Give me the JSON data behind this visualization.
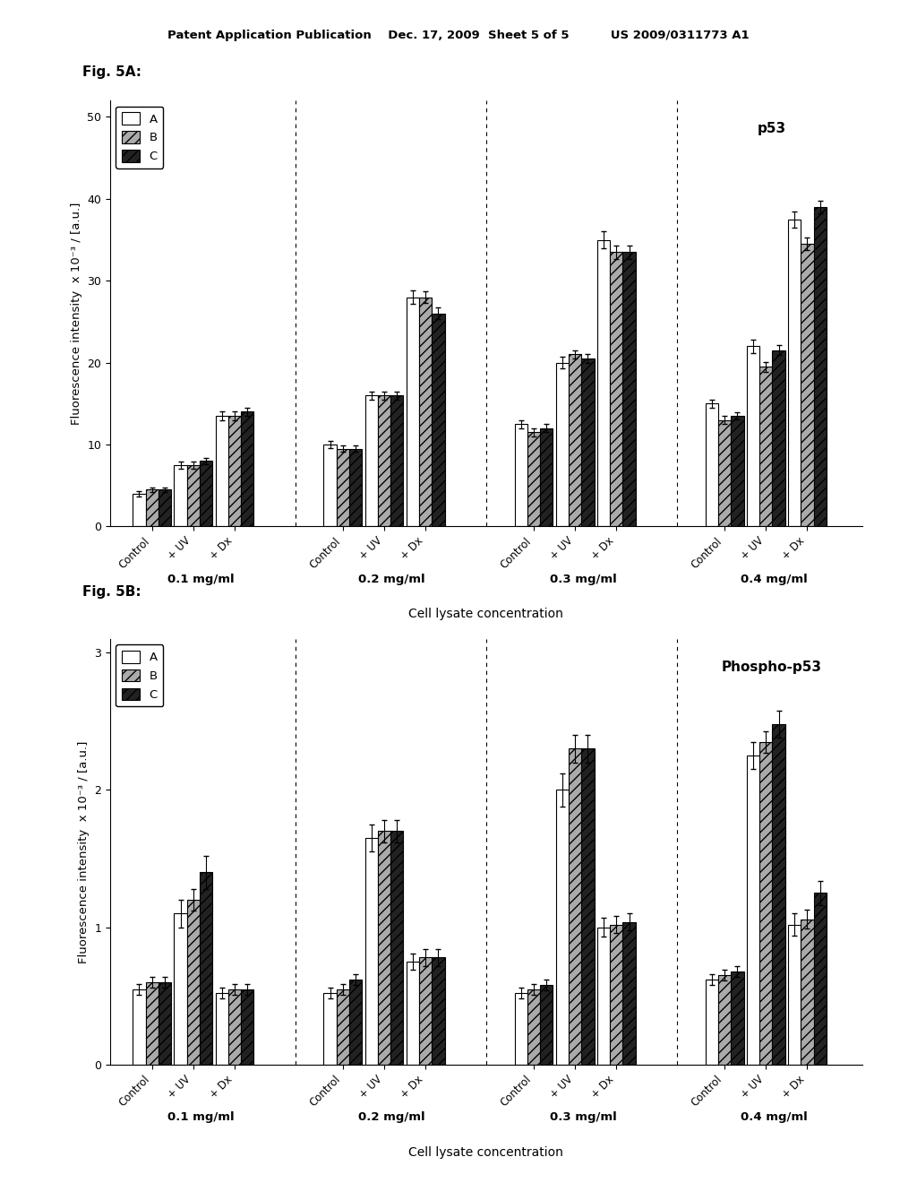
{
  "fig5A": {
    "title": "p53",
    "ylabel": "Fluorescence intensity  x 10⁻³ / [a.u.]",
    "xlabel": "Cell lysate concentration",
    "ylim": [
      0,
      52
    ],
    "yticks": [
      0,
      10,
      20,
      30,
      40,
      50
    ],
    "groups": [
      "0.1 mg/ml",
      "0.2 mg/ml",
      "0.3 mg/ml",
      "0.4 mg/ml"
    ],
    "subgroups": [
      "Control",
      "+ UV",
      "+ Dx"
    ],
    "legend_labels": [
      "A",
      "B",
      "C"
    ],
    "data_A": [
      4.0,
      7.5,
      13.5,
      10.0,
      16.0,
      28.0,
      12.5,
      20.0,
      35.0,
      15.0,
      22.0,
      37.5
    ],
    "data_B": [
      4.5,
      7.5,
      13.5,
      9.5,
      16.0,
      28.0,
      11.5,
      21.0,
      33.5,
      13.0,
      19.5,
      34.5
    ],
    "data_C": [
      4.5,
      8.0,
      14.0,
      9.5,
      16.0,
      26.0,
      12.0,
      20.5,
      33.5,
      13.5,
      21.5,
      39.0
    ],
    "err_A": [
      0.3,
      0.4,
      0.5,
      0.4,
      0.5,
      0.8,
      0.5,
      0.7,
      1.0,
      0.5,
      0.8,
      1.0
    ],
    "err_B": [
      0.3,
      0.4,
      0.5,
      0.4,
      0.5,
      0.7,
      0.5,
      0.5,
      0.8,
      0.5,
      0.6,
      0.8
    ],
    "err_C": [
      0.3,
      0.4,
      0.5,
      0.4,
      0.5,
      0.7,
      0.5,
      0.5,
      0.8,
      0.4,
      0.6,
      0.8
    ]
  },
  "fig5B": {
    "title": "Phospho-p53",
    "ylabel": "Fluorescence intensity  x 10⁻³ / [a.u.]",
    "xlabel": "Cell lysate concentration",
    "ylim": [
      0,
      3.1
    ],
    "yticks": [
      0,
      1,
      2,
      3
    ],
    "groups": [
      "0.1 mg/ml",
      "0.2 mg/ml",
      "0.3 mg/ml",
      "0.4 mg/ml"
    ],
    "subgroups": [
      "Control",
      "+ UV",
      "+ Dx"
    ],
    "legend_labels": [
      "A",
      "B",
      "C"
    ],
    "data_A": [
      0.55,
      1.1,
      0.52,
      0.52,
      1.65,
      0.75,
      0.52,
      2.0,
      1.0,
      0.62,
      2.25,
      1.02
    ],
    "data_B": [
      0.6,
      1.2,
      0.55,
      0.55,
      1.7,
      0.78,
      0.55,
      2.3,
      1.02,
      0.65,
      2.35,
      1.06
    ],
    "data_C": [
      0.6,
      1.4,
      0.55,
      0.62,
      1.7,
      0.78,
      0.58,
      2.3,
      1.04,
      0.68,
      2.48,
      1.25
    ],
    "err_A": [
      0.04,
      0.1,
      0.04,
      0.04,
      0.1,
      0.06,
      0.04,
      0.12,
      0.07,
      0.04,
      0.1,
      0.08
    ],
    "err_B": [
      0.04,
      0.08,
      0.04,
      0.04,
      0.08,
      0.06,
      0.04,
      0.1,
      0.06,
      0.04,
      0.08,
      0.07
    ],
    "err_C": [
      0.04,
      0.12,
      0.04,
      0.04,
      0.08,
      0.06,
      0.04,
      0.1,
      0.06,
      0.04,
      0.1,
      0.09
    ]
  },
  "header_text": "Patent Application Publication    Dec. 17, 2009  Sheet 5 of 5          US 2009/0311773 A1",
  "color_A": "white",
  "color_B": "#aaaaaa",
  "color_C": "#222222",
  "hatch_A": "",
  "hatch_B": "///",
  "hatch_C": "///"
}
